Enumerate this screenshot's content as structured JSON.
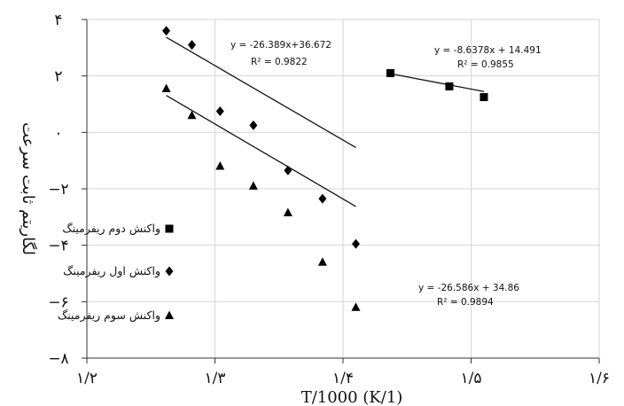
{
  "chart_data": {
    "type": "scatter",
    "xlabel": "T/1000 (K/1)",
    "ylabel": "لگاریتم ثابت سرعت",
    "xlim": [
      1.2,
      1.6
    ],
    "ylim": [
      -8,
      4
    ],
    "xticks": [
      1.2,
      1.3,
      1.4,
      1.5,
      1.6
    ],
    "yticks": [
      -8,
      -6,
      -4,
      -2,
      0,
      2,
      4
    ],
    "xtick_labels": [
      "۱/۲",
      "۱/۳",
      "۱/۴",
      "۱/۵",
      "۱/۶"
    ],
    "ytick_labels": [
      "−۸",
      "−۶",
      "−۴",
      "−۲",
      "۰",
      "۲",
      "۴"
    ],
    "grid": true,
    "legend_position": "left",
    "series": [
      {
        "name": "واکنش دوم ریفرمینگ",
        "marker": "square",
        "x": [
          1.437,
          1.483,
          1.51
        ],
        "y": [
          2.1,
          1.63,
          1.25
        ],
        "trendline": {
          "slope": -8.6378,
          "intercept": 14.491,
          "equation": "y = -8.6378x + 14.491",
          "r2": "R² = 0.9855"
        }
      },
      {
        "name": "واکنش اول ریفرمینگ",
        "marker": "diamond",
        "x": [
          1.262,
          1.282,
          1.304,
          1.33,
          1.357,
          1.384,
          1.41
        ],
        "y": [
          3.6,
          3.1,
          0.75,
          0.25,
          -1.35,
          -2.35,
          -3.95
        ],
        "trendline": {
          "slope": -26.389,
          "intercept": 36.672,
          "equation": "y = -26.389x+36.672",
          "r2": "R² = 0.9822"
        }
      },
      {
        "name": "واکنش سوم ریفرمینگ",
        "marker": "triangle",
        "x": [
          1.262,
          1.282,
          1.304,
          1.33,
          1.357,
          1.384,
          1.41
        ],
        "y": [
          1.55,
          0.6,
          -1.2,
          -1.9,
          -2.85,
          -4.6,
          -6.2
        ],
        "trendline": {
          "slope": -26.586,
          "intercept": 34.86,
          "equation": "y = -26.586x + 34.86",
          "r2": "R² = 0.9894"
        }
      }
    ]
  }
}
